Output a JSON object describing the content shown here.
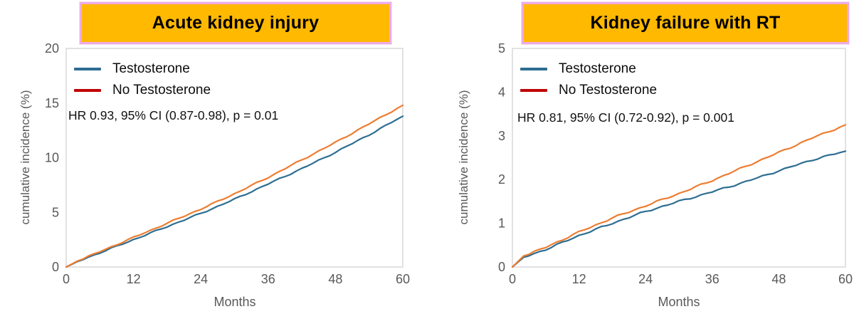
{
  "figure": {
    "background": "#ffffff",
    "banner_fill": "#FFB900",
    "banner_border": "#EDABE3",
    "axis_text_color": "#595959",
    "plot_border_color": "#D2D2D2"
  },
  "chart_data": [
    {
      "type": "line",
      "title": "Acute kidney injury",
      "xlabel": "Months",
      "ylabel": "cumulative incidence (%)",
      "annotation": "HR 0.93, 95% CI (0.87-0.98), p = 0.01",
      "xlim": [
        0,
        60
      ],
      "ylim": [
        0,
        20
      ],
      "xticks": [
        0,
        12,
        24,
        36,
        48,
        60
      ],
      "yticks": [
        0,
        5,
        10,
        15,
        20
      ],
      "grid": false,
      "legend_position": "top-left",
      "x": [
        0,
        2,
        6,
        12,
        18,
        24,
        30,
        36,
        42,
        48,
        54,
        60
      ],
      "series": [
        {
          "name": "Testosterone",
          "legend_color": "#C23536",
          "line_color": "#2E6E91",
          "values": [
            0,
            0.5,
            1.3,
            2.5,
            3.7,
            4.9,
            6.2,
            7.6,
            9.0,
            10.5,
            12.1,
            13.8
          ]
        },
        {
          "name": "No Testosterone",
          "legend_color": "#C00000",
          "line_color": "#ED7D31",
          "values": [
            0,
            0.55,
            1.4,
            2.7,
            4.0,
            5.3,
            6.7,
            8.2,
            9.8,
            11.4,
            13.1,
            14.8
          ]
        }
      ]
    },
    {
      "type": "line",
      "title": "Kidney failure with RT",
      "xlabel": "Months",
      "ylabel": "cumulative incidence (%)",
      "annotation": "HR 0.81, 95% CI (0.72-0.92), p = 0.001",
      "xlim": [
        0,
        60
      ],
      "ylim": [
        0,
        5
      ],
      "xticks": [
        0,
        12,
        24,
        36,
        48,
        60
      ],
      "yticks": [
        0,
        1,
        2,
        3,
        4,
        5
      ],
      "grid": false,
      "legend_position": "top-left",
      "x": [
        0,
        2,
        6,
        12,
        18,
        24,
        30,
        36,
        42,
        48,
        54,
        60
      ],
      "series": [
        {
          "name": "Testosterone",
          "legend_color": "#C23536",
          "line_color": "#2E6E91",
          "values": [
            0,
            0.22,
            0.4,
            0.72,
            1.0,
            1.27,
            1.5,
            1.72,
            1.95,
            2.2,
            2.45,
            2.65
          ]
        },
        {
          "name": "No Testosterone",
          "legend_color": "#C00000",
          "line_color": "#ED7D31",
          "values": [
            0,
            0.25,
            0.45,
            0.8,
            1.12,
            1.4,
            1.68,
            1.98,
            2.3,
            2.62,
            2.95,
            3.25
          ]
        }
      ]
    }
  ],
  "legend_colors_note": {
    "testosterone_swatch": "#2E6E91",
    "no_testosterone_swatch": "#C00000"
  }
}
